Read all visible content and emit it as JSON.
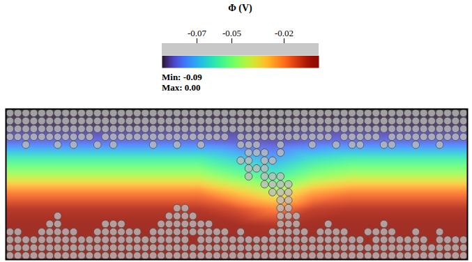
{
  "chart_data": {
    "type": "heatmap",
    "title": "Φ (V)",
    "tick_labels": false,
    "colorbar": {
      "range": [
        -0.09,
        0
      ],
      "ticks": [
        -0.07,
        -0.05,
        -0.02
      ],
      "min_text": "Min: -0.09",
      "max_text": "Max: 0.00"
    },
    "field": [
      [
        -0.09,
        -0.09,
        -0.09,
        -0.09,
        -0.09,
        -0.09,
        -0.09,
        -0.09,
        -0.09,
        -0.09,
        -0.09,
        -0.09,
        -0.09
      ],
      [
        -0.088,
        -0.088,
        -0.088,
        -0.088,
        -0.088,
        -0.088,
        -0.088,
        -0.089,
        -0.088,
        -0.088,
        -0.088,
        -0.088,
        -0.088
      ],
      [
        -0.08,
        -0.08,
        -0.08,
        -0.08,
        -0.08,
        -0.08,
        -0.082,
        -0.084,
        -0.081,
        -0.08,
        -0.08,
        -0.08,
        -0.08
      ],
      [
        -0.058,
        -0.058,
        -0.058,
        -0.058,
        -0.058,
        -0.058,
        -0.065,
        -0.072,
        -0.062,
        -0.058,
        -0.058,
        -0.058,
        -0.058
      ],
      [
        -0.042,
        -0.042,
        -0.042,
        -0.042,
        -0.042,
        -0.042,
        -0.05,
        -0.058,
        -0.047,
        -0.042,
        -0.042,
        -0.042,
        -0.042
      ],
      [
        -0.02,
        -0.02,
        -0.02,
        -0.02,
        -0.02,
        -0.02,
        -0.03,
        -0.04,
        -0.025,
        -0.02,
        -0.02,
        -0.02,
        -0.02
      ],
      [
        -0.007,
        -0.007,
        -0.007,
        -0.007,
        -0.007,
        -0.007,
        -0.012,
        -0.02,
        -0.009,
        -0.007,
        -0.007,
        -0.007,
        -0.007
      ],
      [
        -0.002,
        -0.002,
        -0.002,
        -0.002,
        -0.002,
        -0.002,
        -0.003,
        -0.006,
        -0.002,
        -0.002,
        -0.002,
        -0.002,
        -0.002
      ],
      [
        0,
        0,
        0,
        0,
        0,
        0,
        0,
        0,
        0,
        0,
        0,
        0,
        0
      ],
      [
        0,
        0,
        0,
        0,
        0,
        0,
        0,
        0,
        0,
        0,
        0,
        0,
        0
      ]
    ],
    "particle_columns": 58,
    "particle_rows": [
      [
        [
          0,
          57
        ]
      ],
      [
        [
          0,
          57
        ]
      ],
      [
        [
          0,
          57
        ]
      ],
      [
        [
          0,
          10
        ],
        [
          12,
          27
        ],
        [
          29,
          40
        ],
        [
          42,
          46
        ],
        [
          48,
          57
        ]
      ],
      [
        [
          2,
          2
        ],
        [
          6,
          6
        ],
        [
          8,
          8
        ],
        [
          11,
          11
        ],
        [
          13,
          13
        ],
        [
          18,
          18
        ],
        [
          21,
          21
        ],
        [
          24,
          24
        ],
        [
          29,
          31
        ],
        [
          34,
          34
        ],
        [
          38,
          38
        ],
        [
          41,
          41
        ],
        [
          43,
          44
        ],
        [
          47,
          48
        ],
        [
          51,
          51
        ],
        [
          54,
          54
        ]
      ],
      [
        [
          30,
          32
        ],
        [
          34,
          34
        ]
      ],
      [
        [
          29,
          30
        ],
        [
          32,
          33
        ]
      ],
      [
        [
          30,
          32
        ]
      ],
      [
        [
          30,
          30
        ],
        [
          32,
          34
        ]
      ],
      [
        [
          32,
          35
        ]
      ],
      [
        [
          33,
          35
        ]
      ],
      [
        [
          34,
          35
        ]
      ],
      [
        [
          21,
          22
        ],
        [
          34,
          35
        ]
      ],
      [
        [
          6,
          6
        ],
        [
          20,
          23
        ],
        [
          34,
          36
        ]
      ],
      [
        [
          5,
          6
        ],
        [
          12,
          14
        ],
        [
          19,
          25
        ],
        [
          34,
          36
        ],
        [
          40,
          40
        ],
        [
          47,
          47
        ]
      ],
      [
        [
          0,
          1
        ],
        [
          4,
          8
        ],
        [
          11,
          16
        ],
        [
          18,
          27
        ],
        [
          29,
          29
        ],
        [
          33,
          37
        ],
        [
          39,
          42
        ],
        [
          45,
          48
        ],
        [
          51,
          51
        ],
        [
          54,
          54
        ]
      ],
      [
        [
          0,
          22
        ],
        [
          24,
          44
        ],
        [
          46,
          52
        ],
        [
          54,
          57
        ]
      ],
      [
        [
          0,
          57
        ]
      ],
      [
        [
          0,
          57
        ]
      ]
    ]
  }
}
